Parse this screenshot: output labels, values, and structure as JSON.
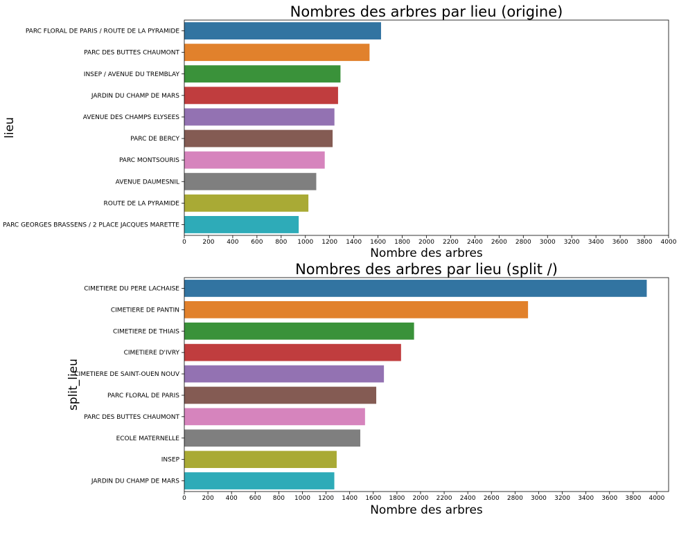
{
  "chart_data": [
    {
      "type": "bar",
      "orientation": "horizontal",
      "title": "Nombres des arbres par lieu (origine)",
      "xlabel": "Nombre des arbres",
      "ylabel": "lieu",
      "xlim": [
        0,
        4000
      ],
      "xticks": [
        0,
        200,
        400,
        600,
        800,
        1000,
        1200,
        1400,
        1600,
        1800,
        2000,
        2200,
        2400,
        2600,
        2800,
        3000,
        3200,
        3400,
        3600,
        3800,
        4000
      ],
      "grid": false,
      "categories": [
        "PARC FLORAL DE PARIS / ROUTE DE LA PYRAMIDE",
        "PARC DES BUTTES CHAUMONT",
        "INSEP / AVENUE DU TREMBLAY",
        "JARDIN DU CHAMP DE MARS",
        "AVENUE DES CHAMPS ELYSEES",
        "PARC DE BERCY",
        "PARC MONTSOURIS",
        "AVENUE DAUMESNIL",
        "ROUTE DE LA PYRAMIDE",
        "PARC GEORGES BRASSENS / 2 PLACE JACQUES MARETTE"
      ],
      "values": [
        1625,
        1530,
        1290,
        1270,
        1240,
        1225,
        1160,
        1090,
        1025,
        945
      ],
      "colors": [
        "#3274a1",
        "#e1812c",
        "#3a923a",
        "#c03d3e",
        "#9372b2",
        "#845b53",
        "#d684bd",
        "#7f7f7f",
        "#a9aa35",
        "#2eabb8"
      ]
    },
    {
      "type": "bar",
      "orientation": "horizontal",
      "title": "Nombres des arbres par lieu (split /)",
      "xlabel": "Nombre des arbres",
      "ylabel": "split_lieu",
      "xlim": [
        0,
        4100
      ],
      "xticks": [
        0,
        200,
        400,
        600,
        800,
        1000,
        1200,
        1400,
        1600,
        1800,
        2000,
        2200,
        2400,
        2600,
        2800,
        3000,
        3200,
        3400,
        3600,
        3800,
        4000
      ],
      "grid": false,
      "categories": [
        "CIMETIERE DU PERE LACHAISE",
        "CIMETIERE DE PANTIN",
        "CIMETIERE DE THIAIS",
        "CIMETIERE D'IVRY",
        "CIMETIERE DE SAINT-OUEN NOUV",
        "PARC FLORAL DE PARIS",
        "PARC DES BUTTES CHAUMONT",
        "ECOLE MATERNELLE",
        "INSEP",
        "JARDIN DU CHAMP DE MARS"
      ],
      "values": [
        3915,
        2910,
        1945,
        1835,
        1690,
        1625,
        1530,
        1490,
        1290,
        1270
      ],
      "colors": [
        "#3274a1",
        "#e1812c",
        "#3a923a",
        "#c03d3e",
        "#9372b2",
        "#845b53",
        "#d684bd",
        "#7f7f7f",
        "#a9aa35",
        "#2eabb8"
      ]
    }
  ]
}
